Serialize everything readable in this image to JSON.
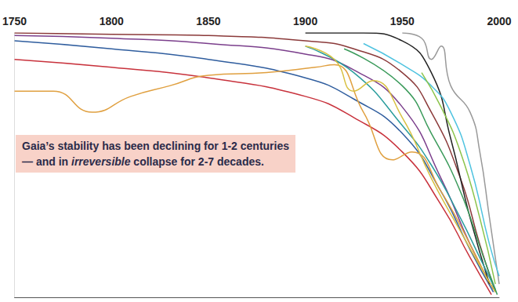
{
  "chart_data": {
    "type": "line",
    "annotation": [
      {
        "text": "Gaia’s stability has been declining for 1-2 centuries\n— and in "
      },
      {
        "text": "irreversible",
        "style": "italic"
      },
      {
        "text": " collapse for 2-7 decades."
      }
    ],
    "xlim": [
      1750,
      2000
    ],
    "xticks": [
      1750,
      1800,
      1850,
      1900,
      1950,
      2000
    ],
    "ylim": [
      0,
      100
    ],
    "tick_labels": "x",
    "grid": false,
    "series": [
      {
        "color": "#8b3a3a",
        "x": [
          1750,
          1800,
          1850,
          1900,
          1925,
          1950,
          1965,
          1980,
          1990,
          1998
        ],
        "values": [
          100,
          99.5,
          99,
          97,
          94,
          85,
          70,
          45,
          20,
          2
        ]
      },
      {
        "color": "#7b3f8c",
        "x": [
          1750,
          1800,
          1850,
          1900,
          1925,
          1950,
          1970,
          1985,
          1997
        ],
        "values": [
          99,
          98,
          96,
          92,
          86,
          72,
          45,
          20,
          3
        ]
      },
      {
        "color": "#2f5d9e",
        "x": [
          1750,
          1800,
          1850,
          1900,
          1925,
          1950,
          1970,
          1985,
          1997
        ],
        "values": [
          97,
          94,
          90,
          83,
          75,
          62,
          40,
          18,
          2
        ]
      },
      {
        "color": "#c8323c",
        "x": [
          1750,
          1800,
          1850,
          1900,
          1925,
          1950,
          1970,
          1985,
          1996
        ],
        "values": [
          90,
          87,
          83,
          76,
          68,
          55,
          35,
          15,
          1
        ]
      },
      {
        "color": "#e0a040",
        "x": [
          1750,
          1770,
          1790,
          1810,
          1830,
          1850,
          1880,
          1905,
          1915,
          1930,
          1945,
          1955,
          1970,
          1985,
          1995
        ],
        "values": [
          78,
          78,
          70,
          76,
          80,
          84,
          85,
          87,
          88,
          70,
          52,
          55,
          40,
          20,
          5
        ]
      },
      {
        "color": "#222222",
        "x": [
          1900,
          1930,
          1950,
          1965,
          1975,
          1985,
          1995
        ],
        "values": [
          100,
          100,
          97,
          85,
          60,
          30,
          5
        ]
      },
      {
        "color": "#999999",
        "x": [
          1950,
          1960,
          1965,
          1970,
          1975,
          1985,
          1990,
          1995,
          2000
        ],
        "values": [
          100,
          98,
          90,
          95,
          80,
          70,
          55,
          30,
          5
        ]
      },
      {
        "color": "#2a9d9d",
        "x": [
          1900,
          1925,
          1950,
          1965,
          1980,
          1990,
          1998
        ],
        "values": [
          95,
          85,
          65,
          50,
          30,
          15,
          3
        ]
      },
      {
        "color": "#4fc3e0",
        "x": [
          1930,
          1950,
          1965,
          1975,
          1985,
          1995,
          2000
        ],
        "values": [
          96,
          88,
          80,
          70,
          50,
          20,
          8
        ]
      },
      {
        "color": "#d8c040",
        "x": [
          1900,
          1915,
          1925,
          1935,
          1950,
          1965,
          1980,
          1990,
          1998
        ],
        "values": [
          95,
          90,
          78,
          82,
          68,
          45,
          25,
          12,
          2
        ]
      },
      {
        "color": "#3a9a5a",
        "x": [
          1920,
          1950,
          1965,
          1980,
          1992,
          1999
        ],
        "values": [
          94,
          80,
          62,
          40,
          15,
          1
        ]
      },
      {
        "color": "#8bc34a",
        "x": [
          1960,
          1970,
          1980,
          1990,
          1998
        ],
        "values": [
          85,
          72,
          55,
          30,
          5
        ]
      }
    ]
  }
}
